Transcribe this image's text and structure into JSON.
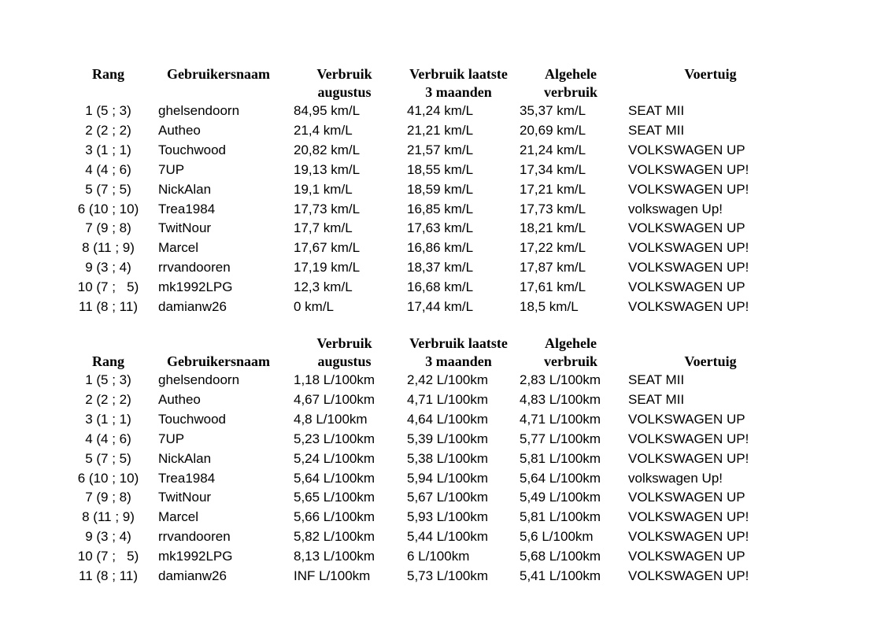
{
  "page": {
    "background_color": "#ffffff",
    "text_color": "#000000"
  },
  "columns": [
    {
      "key": "rank",
      "label_line1": "Rang",
      "label_line2": ""
    },
    {
      "key": "username",
      "label_line1": "Gebruikersnaam",
      "label_line2": ""
    },
    {
      "key": "aug",
      "label_line1": "Verbruik",
      "label_line2": "augustus"
    },
    {
      "key": "last3",
      "label_line1": "Verbruik laatste",
      "label_line2": "3 maanden"
    },
    {
      "key": "overall",
      "label_line1": "Algehele",
      "label_line2": "verbruik"
    },
    {
      "key": "vehicle",
      "label_line1": "Voertuig",
      "label_line2": ""
    }
  ],
  "tables": [
    {
      "id": "km-per-liter-ranking",
      "unit": "km/L",
      "header_align": "top",
      "rows": [
        {
          "rank": "1 (5 ; 3)",
          "username": "ghelsendoorn",
          "aug": "84,95 km/L",
          "last3": "41,24 km/L",
          "overall": "35,37 km/L",
          "vehicle": "SEAT MII"
        },
        {
          "rank": "2 (2 ; 2)",
          "username": "Autheo",
          "aug": "21,4 km/L",
          "last3": "21,21 km/L",
          "overall": "20,69 km/L",
          "vehicle": "SEAT MII"
        },
        {
          "rank": "3 (1 ; 1)",
          "username": "Touchwood",
          "aug": "20,82 km/L",
          "last3": "21,57 km/L",
          "overall": "21,24 km/L",
          "vehicle": "VOLKSWAGEN UP"
        },
        {
          "rank": "4 (4 ; 6)",
          "username": "7UP",
          "aug": "19,13 km/L",
          "last3": "18,55 km/L",
          "overall": "17,34 km/L",
          "vehicle": "VOLKSWAGEN UP!"
        },
        {
          "rank": "5 (7 ; 5)",
          "username": "NickAlan",
          "aug": "19,1 km/L",
          "last3": "18,59 km/L",
          "overall": "17,21 km/L",
          "vehicle": "VOLKSWAGEN UP!"
        },
        {
          "rank": "6 (10 ; 10)",
          "username": "Trea1984",
          "aug": "17,73 km/L",
          "last3": "16,85 km/L",
          "overall": "17,73 km/L",
          "vehicle": "volkswagen Up!"
        },
        {
          "rank": "7 (9 ; 8)",
          "username": "TwitNour",
          "aug": "17,7 km/L",
          "last3": "17,63 km/L",
          "overall": "18,21 km/L",
          "vehicle": "VOLKSWAGEN UP"
        },
        {
          "rank": "8 (11 ; 9)",
          "username": "Marcel",
          "aug": "17,67 km/L",
          "last3": "16,86 km/L",
          "overall": "17,22 km/L",
          "vehicle": "VOLKSWAGEN UP!"
        },
        {
          "rank": "9 (3 ; 4)",
          "username": "rrvandooren",
          "aug": "17,19 km/L",
          "last3": "18,37 km/L",
          "overall": "17,87 km/L",
          "vehicle": "VOLKSWAGEN UP!"
        },
        {
          "rank": "10 (7 ;   5)",
          "username": "mk1992LPG",
          "aug": "12,3 km/L",
          "last3": "16,68 km/L",
          "overall": "17,61 km/L",
          "vehicle": "VOLKSWAGEN UP"
        },
        {
          "rank": "11 (8 ; 11)",
          "username": "damianw26",
          "aug": "0 km/L",
          "last3": "17,44 km/L",
          "overall": "18,5 km/L",
          "vehicle": "VOLKSWAGEN UP!"
        }
      ]
    },
    {
      "id": "liters-per-100km-ranking",
      "unit": "L/100km",
      "header_align": "bottom",
      "rows": [
        {
          "rank": "1 (5 ; 3)",
          "username": "ghelsendoorn",
          "aug": "1,18 L/100km",
          "last3": "2,42 L/100km",
          "overall": "2,83 L/100km",
          "vehicle": "SEAT MII"
        },
        {
          "rank": "2 (2 ; 2)",
          "username": "Autheo",
          "aug": "4,67 L/100km",
          "last3": "4,71 L/100km",
          "overall": "4,83 L/100km",
          "vehicle": "SEAT MII"
        },
        {
          "rank": "3 (1 ; 1)",
          "username": "Touchwood",
          "aug": "4,8 L/100km",
          "last3": "4,64 L/100km",
          "overall": "4,71 L/100km",
          "vehicle": "VOLKSWAGEN UP"
        },
        {
          "rank": "4 (4 ; 6)",
          "username": "7UP",
          "aug": "5,23 L/100km",
          "last3": "5,39 L/100km",
          "overall": "5,77 L/100km",
          "vehicle": "VOLKSWAGEN UP!"
        },
        {
          "rank": "5 (7 ; 5)",
          "username": "NickAlan",
          "aug": "5,24 L/100km",
          "last3": "5,38 L/100km",
          "overall": "5,81 L/100km",
          "vehicle": "VOLKSWAGEN UP!"
        },
        {
          "rank": "6 (10 ; 10)",
          "username": "Trea1984",
          "aug": "5,64 L/100km",
          "last3": "5,94 L/100km",
          "overall": "5,64 L/100km",
          "vehicle": "volkswagen Up!"
        },
        {
          "rank": "7 (9 ; 8)",
          "username": "TwitNour",
          "aug": "5,65 L/100km",
          "last3": "5,67 L/100km",
          "overall": "5,49 L/100km",
          "vehicle": "VOLKSWAGEN UP"
        },
        {
          "rank": "8 (11 ; 9)",
          "username": "Marcel",
          "aug": "5,66 L/100km",
          "last3": "5,93 L/100km",
          "overall": "5,81 L/100km",
          "vehicle": "VOLKSWAGEN UP!"
        },
        {
          "rank": "9 (3 ; 4)",
          "username": "rrvandooren",
          "aug": "5,82 L/100km",
          "last3": "5,44 L/100km",
          "overall": "5,6 L/100km",
          "vehicle": "VOLKSWAGEN UP!"
        },
        {
          "rank": "10 (7 ;   5)",
          "username": "mk1992LPG",
          "aug": "8,13 L/100km",
          "last3": "6 L/100km",
          "overall": "5,68 L/100km",
          "vehicle": "VOLKSWAGEN UP"
        },
        {
          "rank": "11 (8 ; 11)",
          "username": "damianw26",
          "aug": "INF L/100km",
          "last3": "5,73 L/100km",
          "overall": "5,41 L/100km",
          "vehicle": "VOLKSWAGEN UP!"
        }
      ]
    }
  ]
}
